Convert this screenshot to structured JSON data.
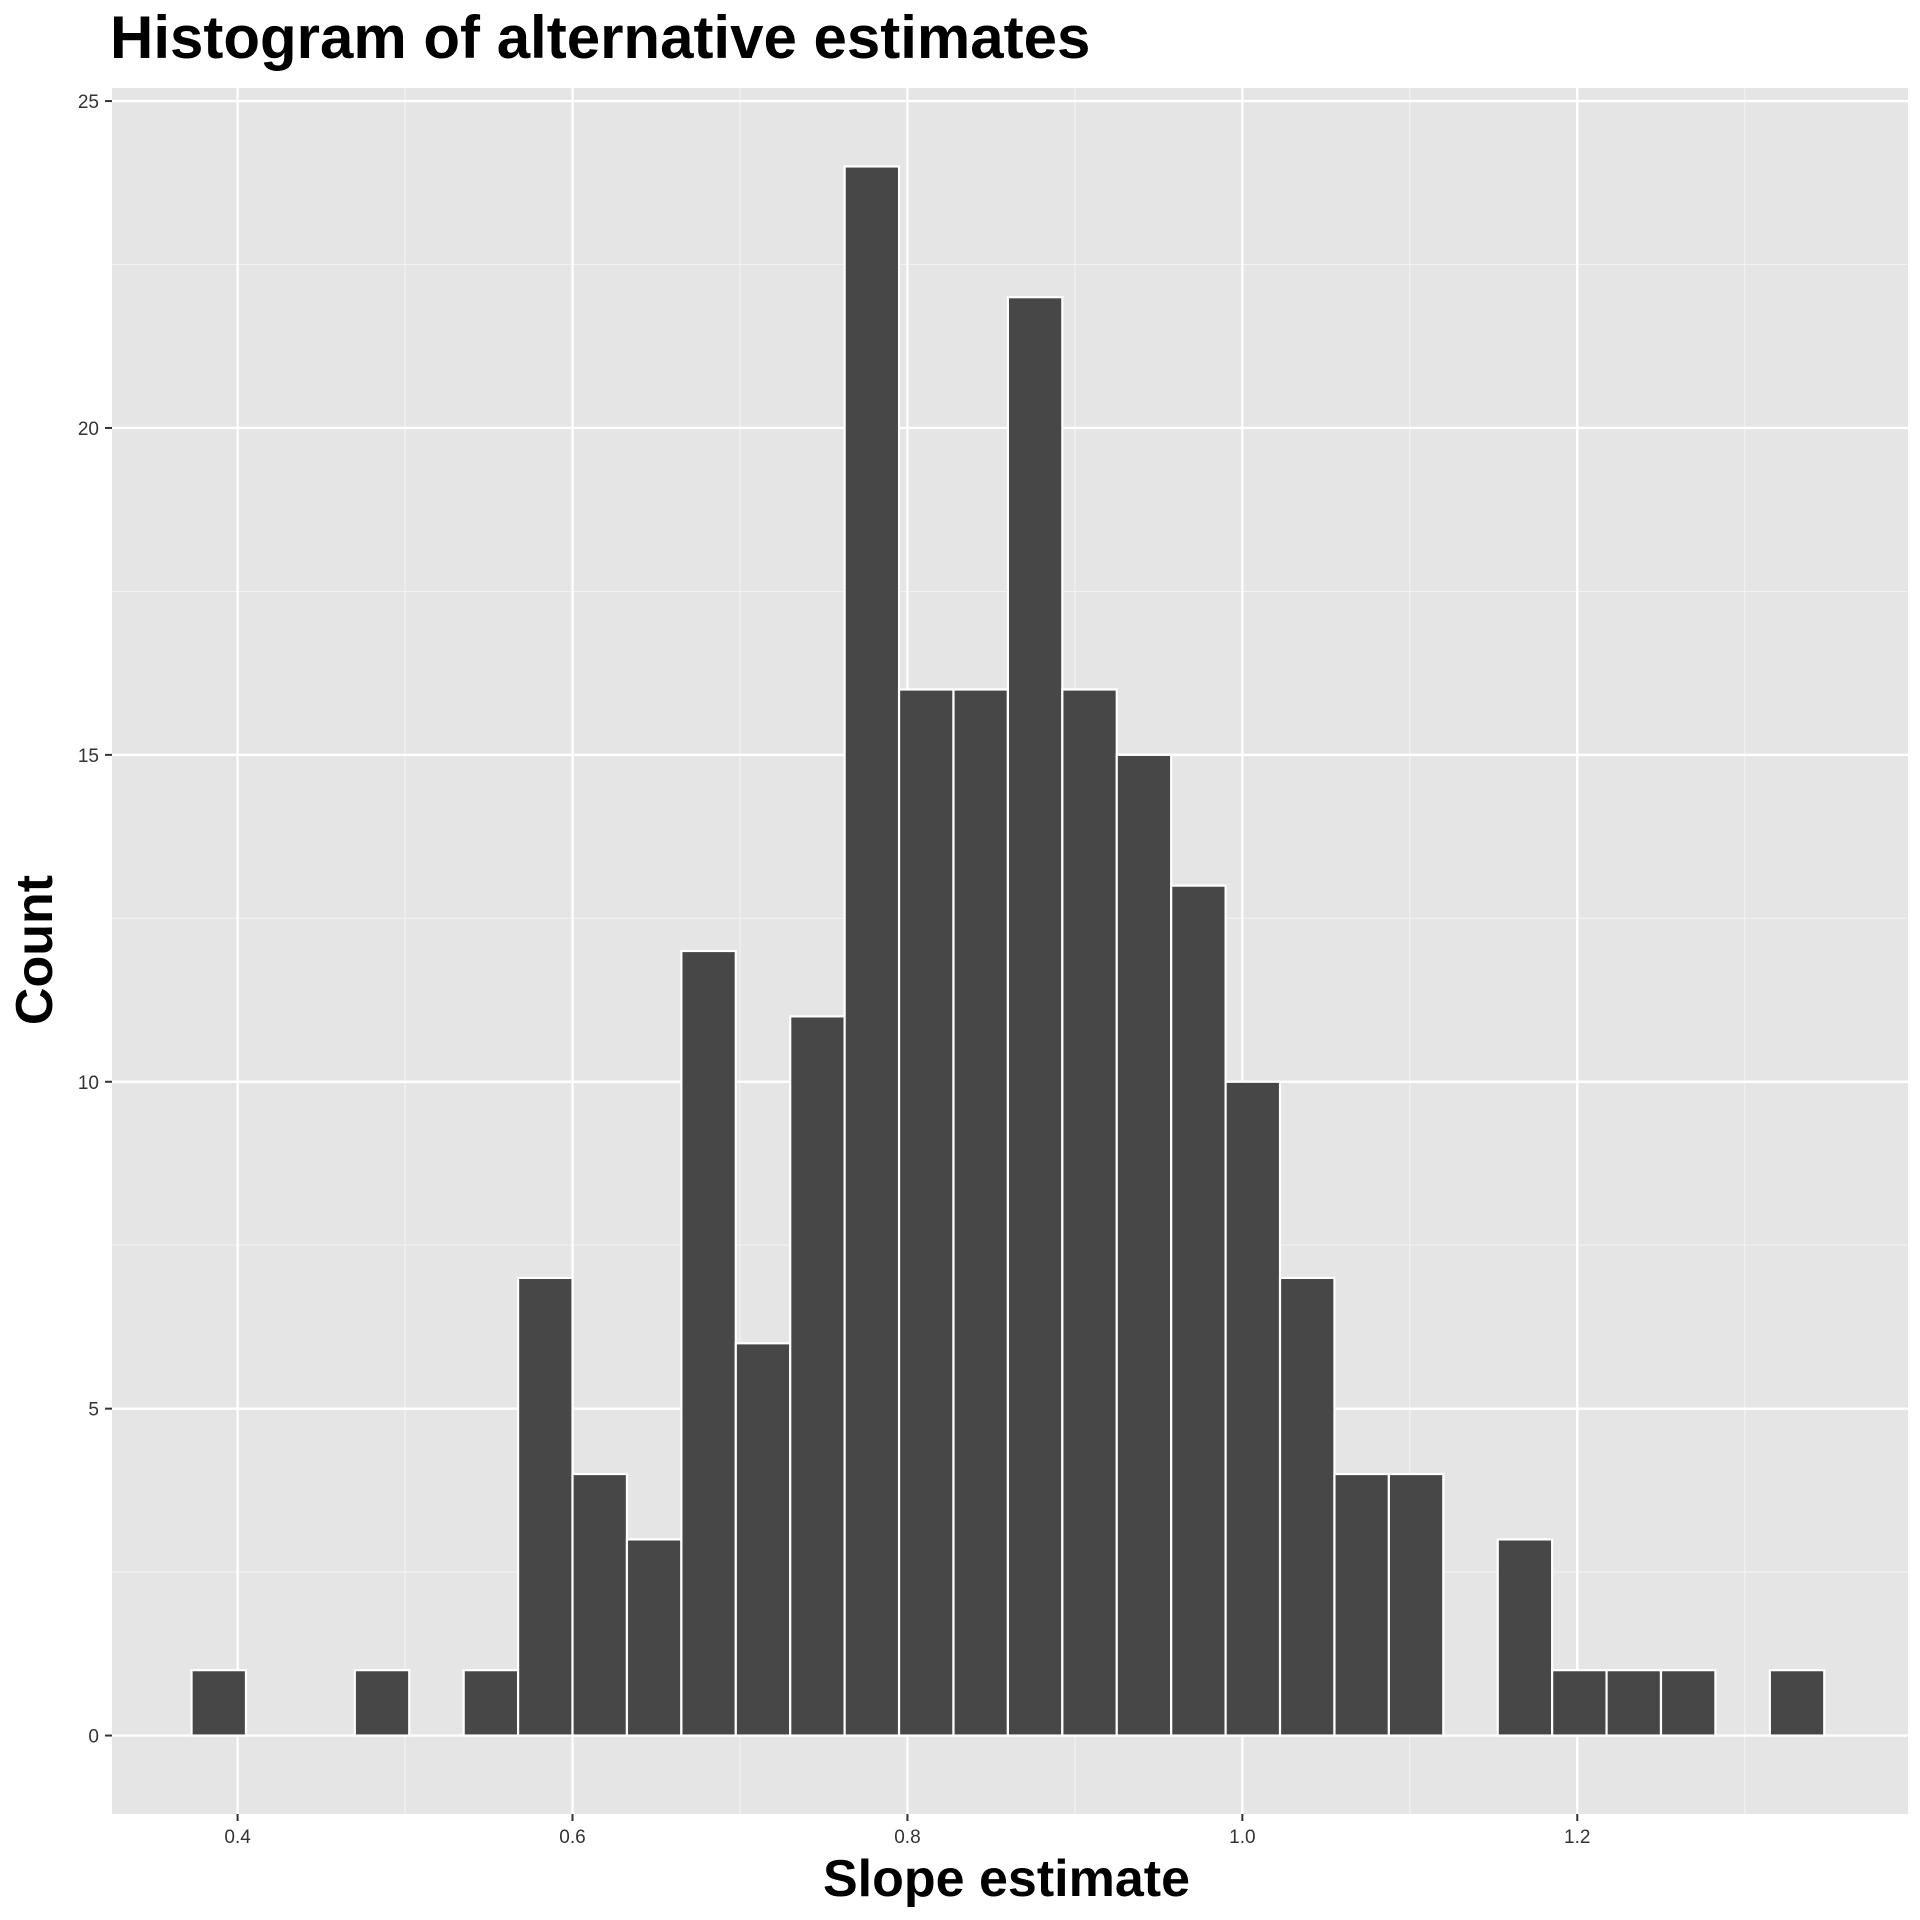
{
  "chart_data": {
    "type": "bar",
    "title": "Histogram of alternative estimates",
    "xlabel": "Slope estimate",
    "ylabel": "Count",
    "xlim": [
      0.325,
      1.3975
    ],
    "ylim": [
      -1.2,
      25.2
    ],
    "xticks": [
      0.4,
      0.6,
      0.8,
      1.0,
      1.2
    ],
    "xtick_labels": [
      "0.4",
      "0.6",
      "0.8",
      "1.0",
      "1.2"
    ],
    "yticks": [
      0,
      5,
      10,
      15,
      20,
      25
    ],
    "ytick_labels": [
      "0",
      "5",
      "10",
      "15",
      "20",
      "25"
    ],
    "grid": true,
    "bin_width": 0.0325,
    "bins": [
      {
        "x0": 0.3725,
        "x1": 0.405,
        "count": 1
      },
      {
        "x0": 0.405,
        "x1": 0.4375,
        "count": 0
      },
      {
        "x0": 0.4375,
        "x1": 0.47,
        "count": 0
      },
      {
        "x0": 0.47,
        "x1": 0.5025,
        "count": 1
      },
      {
        "x0": 0.5025,
        "x1": 0.535,
        "count": 0
      },
      {
        "x0": 0.535,
        "x1": 0.5675,
        "count": 1
      },
      {
        "x0": 0.5675,
        "x1": 0.6,
        "count": 7
      },
      {
        "x0": 0.6,
        "x1": 0.6325,
        "count": 4
      },
      {
        "x0": 0.6325,
        "x1": 0.665,
        "count": 3
      },
      {
        "x0": 0.665,
        "x1": 0.6975,
        "count": 12
      },
      {
        "x0": 0.6975,
        "x1": 0.73,
        "count": 6
      },
      {
        "x0": 0.73,
        "x1": 0.7625,
        "count": 11
      },
      {
        "x0": 0.7625,
        "x1": 0.795,
        "count": 24
      },
      {
        "x0": 0.795,
        "x1": 0.8275,
        "count": 16
      },
      {
        "x0": 0.8275,
        "x1": 0.86,
        "count": 16
      },
      {
        "x0": 0.86,
        "x1": 0.8925,
        "count": 22
      },
      {
        "x0": 0.8925,
        "x1": 0.925,
        "count": 16
      },
      {
        "x0": 0.925,
        "x1": 0.9575,
        "count": 15
      },
      {
        "x0": 0.9575,
        "x1": 0.99,
        "count": 13
      },
      {
        "x0": 0.99,
        "x1": 1.0225,
        "count": 10
      },
      {
        "x0": 1.0225,
        "x1": 1.055,
        "count": 7
      },
      {
        "x0": 1.055,
        "x1": 1.0875,
        "count": 4
      },
      {
        "x0": 1.0875,
        "x1": 1.12,
        "count": 4
      },
      {
        "x0": 1.12,
        "x1": 1.1525,
        "count": 0
      },
      {
        "x0": 1.1525,
        "x1": 1.185,
        "count": 3
      },
      {
        "x0": 1.185,
        "x1": 1.2175,
        "count": 1
      },
      {
        "x0": 1.2175,
        "x1": 1.25,
        "count": 1
      },
      {
        "x0": 1.25,
        "x1": 1.2825,
        "count": 1
      },
      {
        "x0": 1.2825,
        "x1": 1.315,
        "count": 0
      },
      {
        "x0": 1.315,
        "x1": 1.3475,
        "count": 1
      }
    ],
    "colors": {
      "panel_background": "#e5e5e5",
      "grid_major": "#ffffff",
      "grid_minor": "#f2f2f2",
      "bar_fill": "#474747",
      "bar_outline": "#ffffff",
      "tick_mark": "#333333"
    }
  }
}
